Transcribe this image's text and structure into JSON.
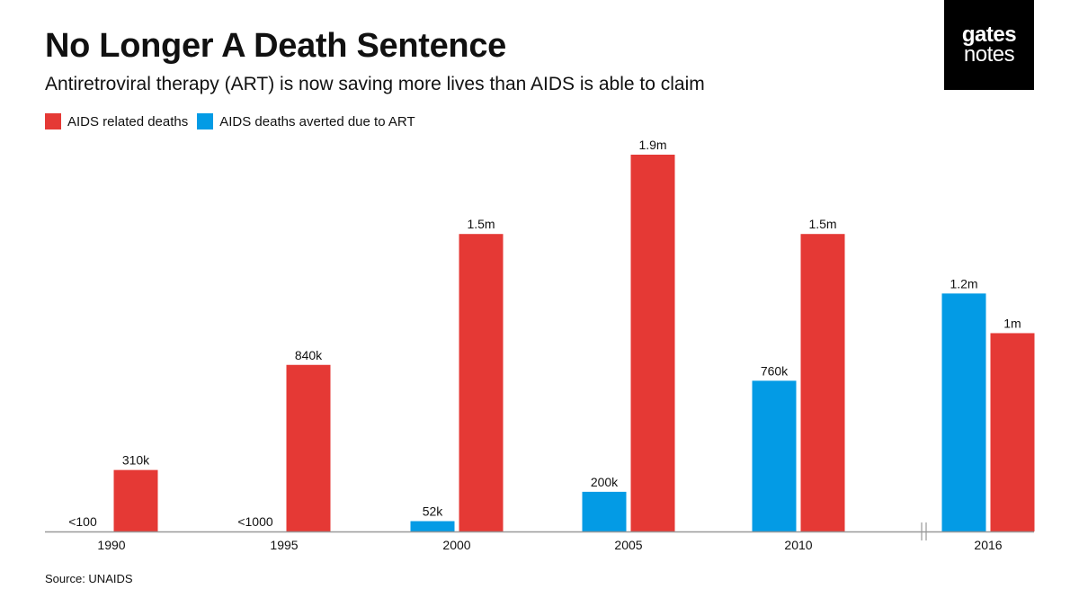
{
  "title": "No Longer A Death Sentence",
  "subtitle": "Antiretroviral therapy (ART) is now saving more lives than AIDS is able to claim",
  "logo": {
    "line1": "gates",
    "line2": "notes"
  },
  "source": "Source: UNAIDS",
  "colors": {
    "deaths": "#e53935",
    "averted": "#039be5",
    "axis": "#999999"
  },
  "chart_data": {
    "type": "bar",
    "title": "No Longer A Death Sentence",
    "xlabel": "",
    "ylabel": "",
    "ylim": [
      0,
      1900000
    ],
    "axis_break_before": "2016",
    "categories": [
      "1990",
      "1995",
      "2000",
      "2005",
      "2010",
      "2016"
    ],
    "legend_position": "top-left",
    "series": [
      {
        "name": "AIDS deaths averted due to ART",
        "color": "#039be5",
        "values": [
          100,
          1000,
          52000,
          200000,
          760000,
          1200000
        ],
        "labels": [
          "<100",
          "<1000",
          "52k",
          "200k",
          "760k",
          "1.2m"
        ]
      },
      {
        "name": "AIDS related deaths",
        "color": "#e53935",
        "values": [
          310000,
          840000,
          1500000,
          1900000,
          1500000,
          1000000
        ],
        "labels": [
          "310k",
          "840k",
          "1.5m",
          "1.9m",
          "1.5m",
          "1m"
        ]
      }
    ]
  }
}
